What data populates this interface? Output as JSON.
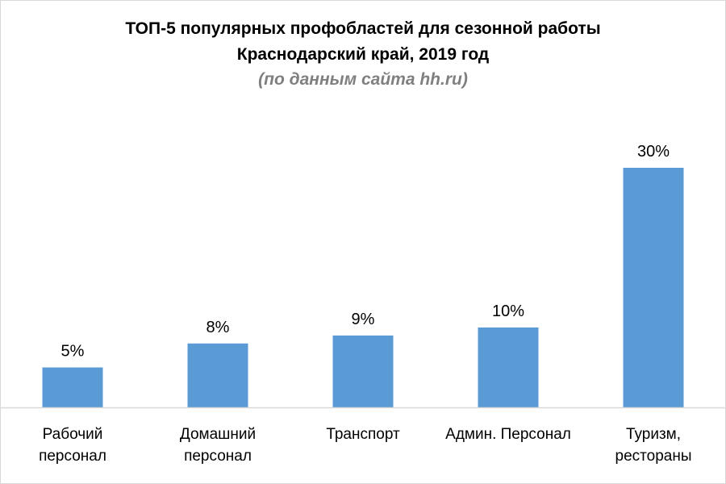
{
  "title": {
    "line1": "ТОП-5 популярных профобластей для сезонной работы",
    "line2": "Краснодарский край,  2019 год",
    "subtitle": "(по данным сайта hh.ru)"
  },
  "colors": {
    "bar": "#5b9bd5",
    "axis": "#d9d9d9",
    "text": "#000000",
    "subtitle": "#7f7f7f"
  },
  "chart_data": {
    "type": "bar",
    "categories": [
      [
        "Рабочий",
        "персонал"
      ],
      [
        "Домашний",
        "персонал"
      ],
      [
        "Транспорт"
      ],
      [
        "Админ. Персонал"
      ],
      [
        "Туризм,",
        "рестораны"
      ]
    ],
    "values": [
      5,
      8,
      9,
      10,
      30
    ],
    "data_labels": [
      "5%",
      "8%",
      "9%",
      "10%",
      "30%"
    ],
    "unit": "%",
    "ylim": [
      0,
      30
    ],
    "grid": false,
    "legend": "none"
  }
}
